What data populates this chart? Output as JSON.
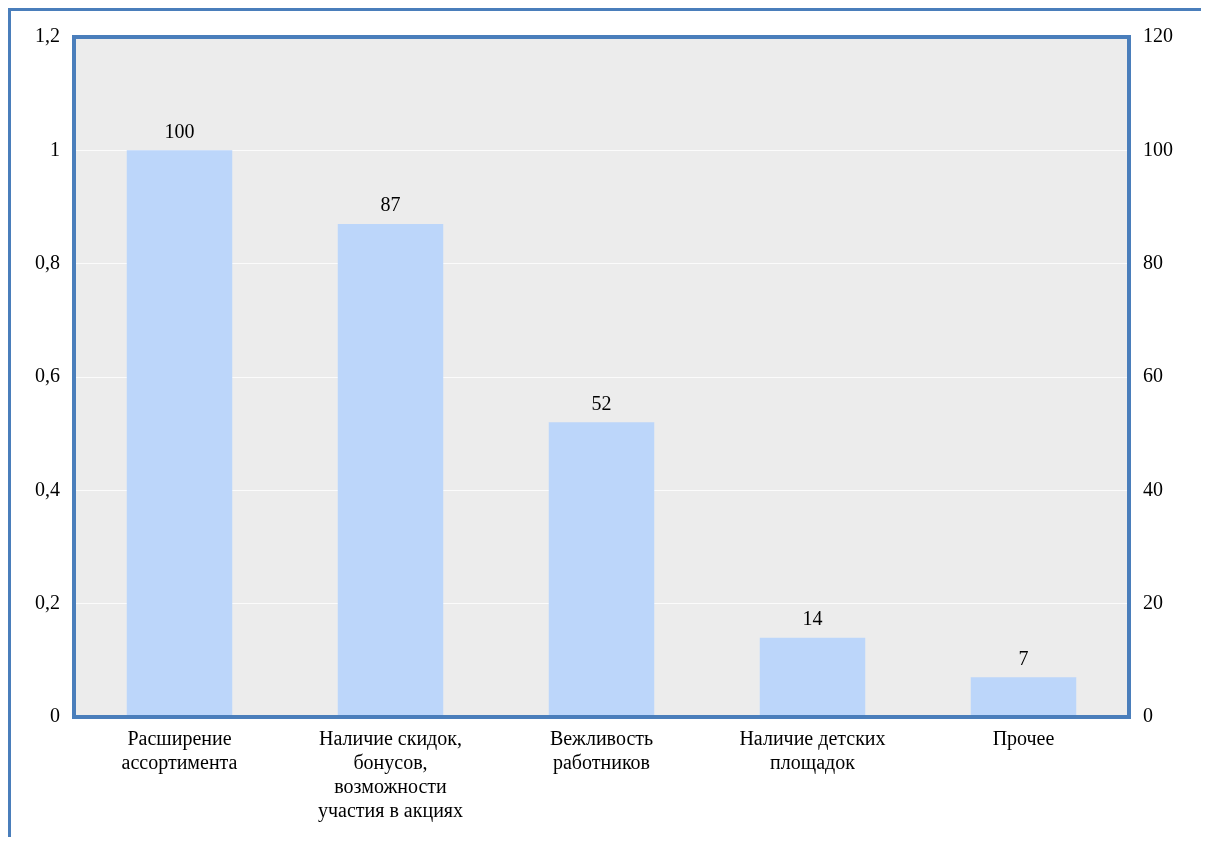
{
  "chart_data": {
    "type": "bar",
    "categories": [
      "Расширение ассортимента",
      "Наличие скидок, бонусов, возможности участия в акциях",
      "Вежливость работников",
      "Наличие детских площадок",
      "Прочее"
    ],
    "series": [
      {
        "color": "#bcd6fa",
        "values": [
          100,
          87,
          52,
          14,
          7
        ],
        "axis": "y2"
      }
    ],
    "ylim": [
      0,
      1.2
    ],
    "yticks": [
      0,
      {
        "value": 0.2,
        "label": "0,2"
      },
      {
        "value": 0.4,
        "label": "0,4"
      },
      {
        "value": 0.6,
        "label": "0,6"
      },
      {
        "value": 0.8,
        "label": "0,8"
      },
      1,
      {
        "value": 1.2,
        "label": "1,2"
      }
    ],
    "y2lim": [
      0,
      120
    ],
    "y2ticks": [
      0,
      20,
      40,
      60,
      80,
      100,
      120
    ],
    "grid": "y",
    "data_labels": true,
    "legend": false
  }
}
